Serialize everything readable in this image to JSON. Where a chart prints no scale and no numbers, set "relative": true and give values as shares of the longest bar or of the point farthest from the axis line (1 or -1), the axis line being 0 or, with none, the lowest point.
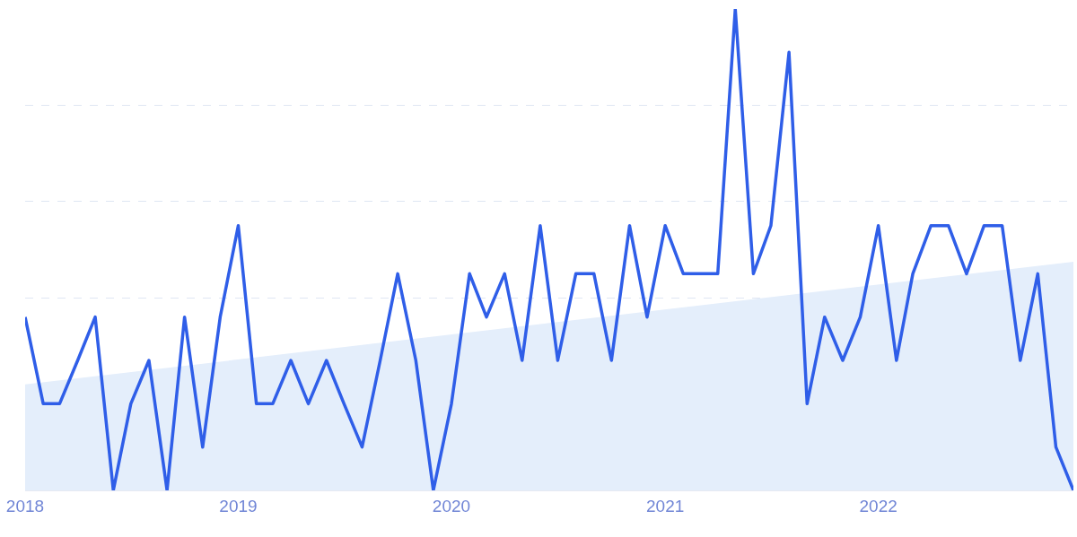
{
  "chart_data": {
    "type": "line",
    "relative": true,
    "grid": "y",
    "line_style": "solid",
    "marker": "none",
    "x": [
      "2018-01",
      "2018-02",
      "2018-03",
      "2018-04",
      "2018-05",
      "2018-06",
      "2018-07",
      "2018-08",
      "2018-09",
      "2018-10",
      "2018-11",
      "2018-12",
      "2019-01",
      "2019-02",
      "2019-03",
      "2019-04",
      "2019-05",
      "2019-06",
      "2019-07",
      "2019-08",
      "2019-09",
      "2019-10",
      "2019-11",
      "2019-12",
      "2020-01",
      "2020-02",
      "2020-03",
      "2020-04",
      "2020-05",
      "2020-06",
      "2020-07",
      "2020-08",
      "2020-09",
      "2020-10",
      "2020-11",
      "2020-12",
      "2021-01",
      "2021-02",
      "2021-03",
      "2021-04",
      "2021-05",
      "2021-06",
      "2021-07",
      "2021-08",
      "2021-09",
      "2021-10",
      "2021-11",
      "2021-12",
      "2022-01",
      "2022-02",
      "2022-03",
      "2022-04",
      "2022-05",
      "2022-06",
      "2022-07",
      "2022-08",
      "2022-09",
      "2022-10",
      "2022-11",
      "2022-12"
    ],
    "xlim": [
      "2018-01",
      "2022-12"
    ],
    "xticks": [
      "2018",
      "2019",
      "2020",
      "2021",
      "2022"
    ],
    "series": [
      {
        "type": "area",
        "color": "#e4eefb",
        "x": [
          "2018-01",
          "2022-12"
        ],
        "values": [
          0.22,
          0.475
        ]
      },
      {
        "color": "#2f5ee8",
        "values": [
          0.36,
          0.18,
          0.18,
          0.27,
          0.36,
          0,
          0.18,
          0.27,
          0,
          0.36,
          0.09,
          0.36,
          0.55,
          0.18,
          0.18,
          0.27,
          0.18,
          0.27,
          0.18,
          0.09,
          0.27,
          0.45,
          0.27,
          0,
          0.18,
          0.45,
          0.36,
          0.45,
          0.27,
          0.55,
          0.27,
          0.45,
          0.45,
          0.27,
          0.55,
          0.36,
          0.55,
          0.45,
          0.45,
          0.45,
          1,
          0.45,
          0.55,
          0.91,
          0.18,
          0.36,
          0.27,
          0.36,
          0.55,
          0.27,
          0.45,
          0.55,
          0.55,
          0.45,
          0.55,
          0.55,
          0.27,
          0.45,
          0.09,
          0
        ]
      }
    ]
  }
}
